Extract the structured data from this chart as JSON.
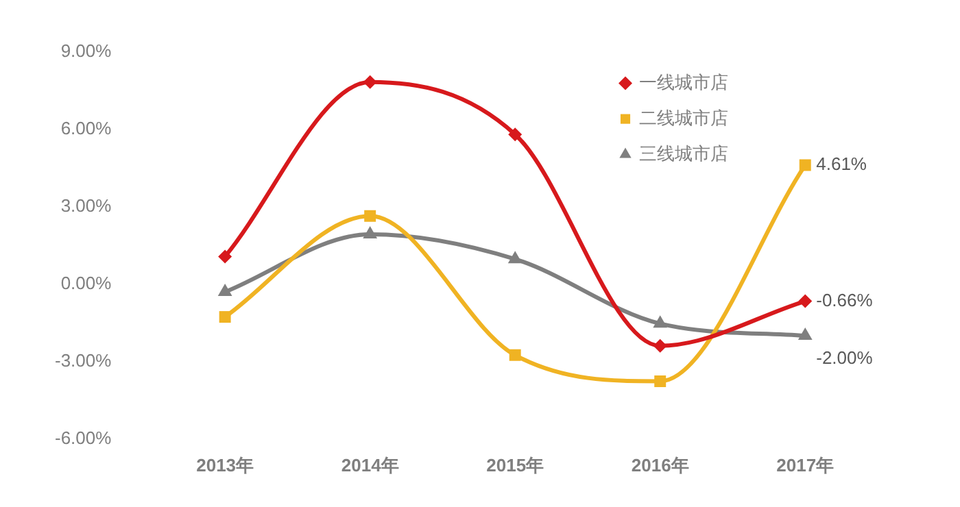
{
  "chart_data": {
    "type": "line",
    "categories": [
      "2013年",
      "2014年",
      "2015年",
      "2016年",
      "2017年"
    ],
    "series": [
      {
        "name": "一线城市店",
        "color": "#d7191c",
        "marker": "diamond",
        "values": [
          1.07,
          7.83,
          5.8,
          -2.39,
          -0.66
        ],
        "value_labels": [
          null,
          null,
          null,
          null,
          "-0.66%"
        ]
      },
      {
        "name": "二线城市店",
        "color": "#f0b323",
        "marker": "square",
        "values": [
          -1.27,
          2.64,
          -2.75,
          -3.76,
          4.61
        ],
        "value_labels": [
          null,
          null,
          null,
          null,
          "4.61%"
        ]
      },
      {
        "name": "三线城市店",
        "color": "#7f7f7f",
        "marker": "triangle",
        "values": [
          -0.3,
          1.93,
          0.97,
          -1.53,
          -2.0
        ],
        "value_labels": [
          null,
          null,
          null,
          null,
          "-2.00%"
        ]
      }
    ],
    "ylim": [
      -6,
      9
    ],
    "yticks": [
      {
        "value": -6,
        "label": "-6.00%"
      },
      {
        "value": -3,
        "label": "-3.00%"
      },
      {
        "value": 0,
        "label": "0.00%"
      },
      {
        "value": 3,
        "label": "3.00%"
      },
      {
        "value": 6,
        "label": "6.00%"
      },
      {
        "value": 9,
        "label": "9.00%"
      }
    ],
    "grid": false,
    "legend": "top right",
    "line_style": "solid"
  }
}
